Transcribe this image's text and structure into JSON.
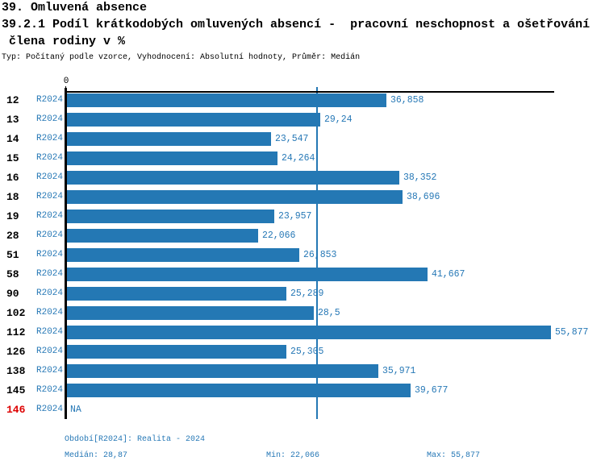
{
  "header": {
    "title": "39. Omluvená absence",
    "subtitle_line1": "39.2.1 Podíl krátkodobých omluvených absencí -  pracovní neschopnost a ošetřování",
    "subtitle_line2": " člena rodiny v %",
    "meta": "Typ: Počítaný podle vzorce, Vyhodnocení: Absolutní hodnoty, Průměr: Medián"
  },
  "chart_data": {
    "type": "bar",
    "orientation": "horizontal",
    "zero_tick_label": "0",
    "series_label": "R2024",
    "categories": [
      "12",
      "13",
      "14",
      "15",
      "16",
      "18",
      "19",
      "28",
      "51",
      "58",
      "90",
      "102",
      "112",
      "126",
      "138",
      "145",
      "146"
    ],
    "values": [
      36.858,
      29.24,
      23.547,
      24.264,
      38.352,
      38.696,
      23.957,
      22.066,
      26.853,
      41.667,
      25.289,
      28.5,
      55.877,
      25.305,
      35.971,
      39.677,
      null
    ],
    "value_labels": [
      "36,858",
      "29,24",
      "23,547",
      "24,264",
      "38,352",
      "38,696",
      "23,957",
      "22,066",
      "26,853",
      "41,667",
      "25,289",
      "28,5",
      "55,877",
      "25,305",
      "35,971",
      "39,677",
      "NA"
    ],
    "median_value": 28.87,
    "min_value": 22.066,
    "max_value": 55.877,
    "xlim": [
      0,
      56.4
    ],
    "highlight_categories": [
      "146"
    ],
    "grid": false,
    "legend": "none",
    "bar_color": "#2478b4",
    "median_line_color": "#2478b4",
    "highlight_color": "#dd0000"
  },
  "footer": {
    "period": "Období[R2024]: Realita - 2024",
    "median": "Medián: 28,87",
    "min": "Min: 22,066",
    "max": "Max: 55,877"
  }
}
